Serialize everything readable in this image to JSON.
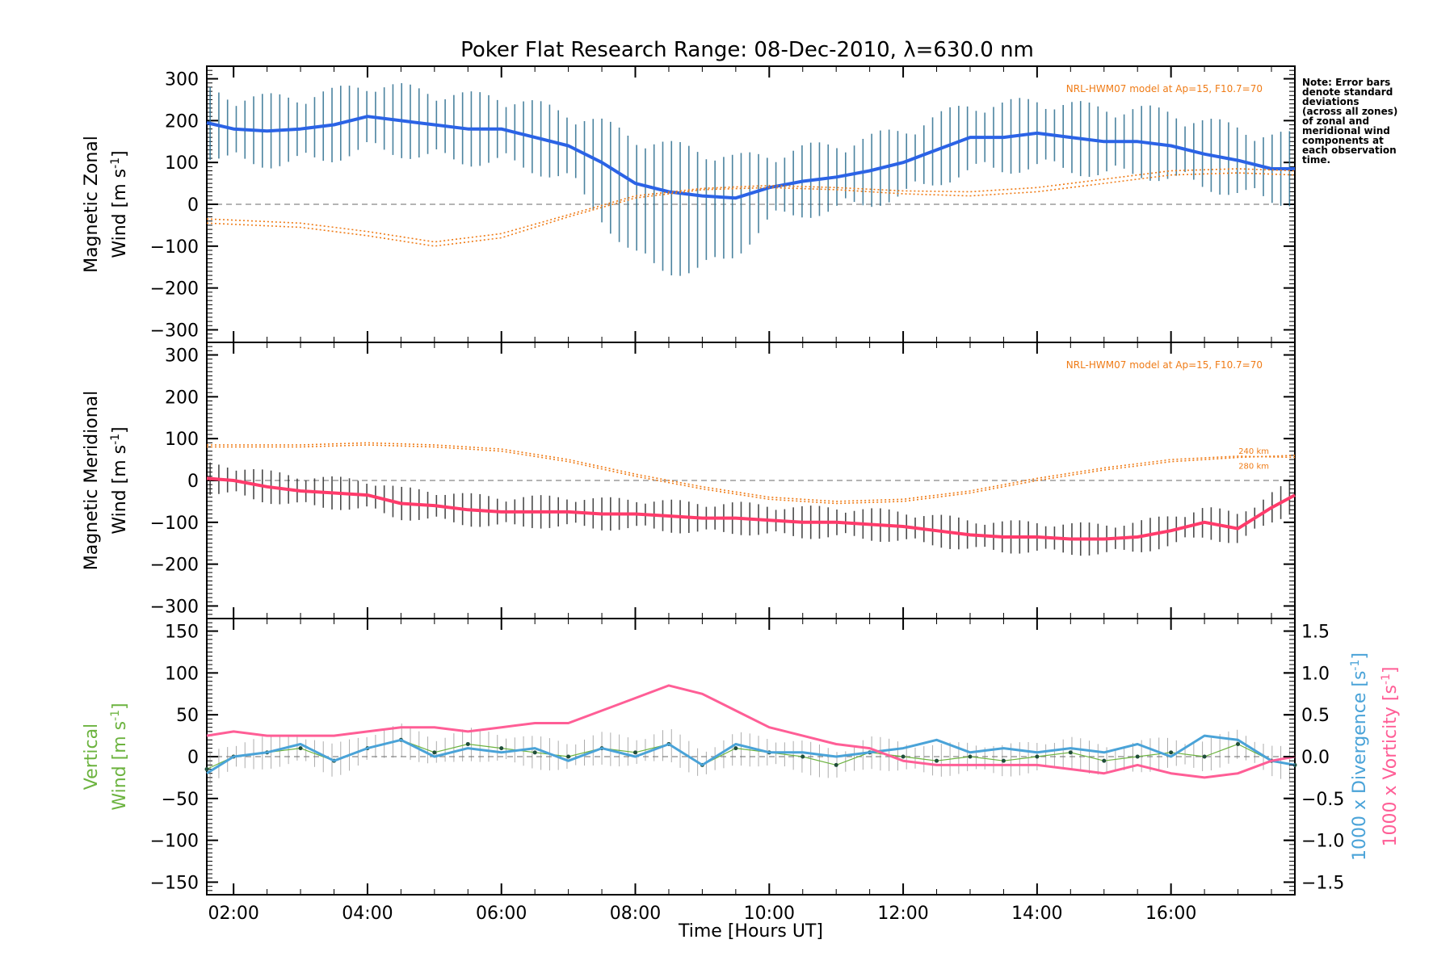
{
  "title": "Poker Flat Research Range: 08-Dec-2010, λ=630.0 nm",
  "note_lines": [
    "Note: Error bars",
    "denote standard",
    "deviations",
    "(across all zones)",
    "of zonal and",
    "meridional wind",
    "components at",
    "each observation",
    "time."
  ],
  "colors": {
    "zonal": "#2b63e6",
    "meridional": "#ff3b6b",
    "vertical_axis": "#6cb33f",
    "divergence": "#4aa3d8",
    "vorticity": "#ff5e96",
    "model": "#ef7b16",
    "errorbar_zonal": "#2c6e8f",
    "errorbar_merid": "#2b2b2b"
  },
  "chart_data": [
    {
      "type": "line",
      "panel": "zonal",
      "ylabel_line1": "Magnetic Zonal",
      "ylabel_line2": "Wind [m s",
      "ylabel_sup": "-1",
      "ylabel_close": "]",
      "ylim": [
        -330,
        330
      ],
      "yticks": [
        300,
        200,
        100,
        0,
        -100,
        -200,
        -300
      ],
      "xlim": [
        1.6,
        17.85
      ],
      "model_label": "NRL-HWM07 model at Ap=15, F10.7=70",
      "series": [
        {
          "name": "zonal wind",
          "x": [
            1.6,
            2.0,
            2.5,
            3.0,
            3.5,
            4.0,
            4.5,
            5.0,
            5.5,
            6.0,
            6.5,
            7.0,
            7.5,
            8.0,
            8.5,
            9.0,
            9.5,
            10.0,
            10.5,
            11.0,
            11.5,
            12.0,
            12.5,
            13.0,
            13.5,
            14.0,
            14.5,
            15.0,
            15.5,
            16.0,
            16.5,
            17.0,
            17.5,
            17.85
          ],
          "values": [
            195,
            180,
            175,
            180,
            190,
            210,
            200,
            190,
            180,
            180,
            160,
            140,
            100,
            50,
            30,
            20,
            15,
            40,
            55,
            65,
            80,
            100,
            130,
            160,
            160,
            170,
            160,
            150,
            150,
            140,
            120,
            105,
            85,
            85
          ],
          "err": 90
        },
        {
          "name": "model 240 km",
          "x": [
            1.6,
            3.0,
            4.0,
            5.0,
            6.0,
            7.0,
            8.0,
            9.0,
            10.0,
            11.0,
            12.0,
            13.0,
            14.0,
            15.0,
            16.0,
            17.0,
            17.85
          ],
          "values": [
            -45,
            -55,
            -75,
            -100,
            -80,
            -30,
            15,
            35,
            40,
            35,
            25,
            20,
            30,
            50,
            70,
            75,
            70
          ]
        },
        {
          "name": "model 280 km",
          "x": [
            1.6,
            3.0,
            4.0,
            5.0,
            6.0,
            7.0,
            8.0,
            9.0,
            10.0,
            11.0,
            12.0,
            13.0,
            14.0,
            15.0,
            16.0,
            17.0,
            17.85
          ],
          "values": [
            -35,
            -45,
            -65,
            -90,
            -70,
            -25,
            20,
            38,
            45,
            40,
            32,
            30,
            40,
            60,
            80,
            85,
            80
          ]
        }
      ]
    },
    {
      "type": "line",
      "panel": "meridional",
      "ylabel_line1": "Magnetic Meridional",
      "ylabel_line2": "Wind [m s",
      "ylabel_sup": "-1",
      "ylabel_close": "]",
      "ylim": [
        -330,
        330
      ],
      "yticks": [
        300,
        200,
        100,
        0,
        -100,
        -200,
        -300
      ],
      "xlim": [
        1.6,
        17.85
      ],
      "model_label": "NRL-HWM07 model at Ap=15, F10.7=70",
      "model_alt_labels": [
        "240 km",
        "280 km"
      ],
      "series": [
        {
          "name": "meridional wind",
          "x": [
            1.6,
            2.0,
            2.5,
            3.0,
            3.5,
            4.0,
            4.5,
            5.0,
            5.5,
            6.0,
            6.5,
            7.0,
            7.5,
            8.0,
            8.5,
            9.0,
            9.5,
            10.0,
            10.5,
            11.0,
            11.5,
            12.0,
            12.5,
            13.0,
            13.5,
            14.0,
            14.5,
            15.0,
            15.5,
            16.0,
            16.5,
            17.0,
            17.5,
            17.85
          ],
          "values": [
            5,
            0,
            -15,
            -25,
            -30,
            -35,
            -55,
            -60,
            -70,
            -75,
            -75,
            -75,
            -80,
            -80,
            -85,
            -90,
            -90,
            -95,
            -100,
            -100,
            -105,
            -110,
            -120,
            -130,
            -135,
            -135,
            -140,
            -140,
            -135,
            -120,
            -100,
            -115,
            -65,
            -35
          ],
          "err": 40
        },
        {
          "name": "model 240 km",
          "x": [
            1.6,
            3.0,
            4.0,
            5.0,
            6.0,
            7.0,
            8.0,
            9.0,
            10.0,
            11.0,
            12.0,
            13.0,
            14.0,
            15.0,
            16.0,
            17.0,
            17.85
          ],
          "values": [
            80,
            80,
            85,
            80,
            70,
            45,
            10,
            -20,
            -45,
            -55,
            -50,
            -30,
            0,
            25,
            45,
            55,
            60
          ]
        },
        {
          "name": "model 280 km",
          "x": [
            1.6,
            3.0,
            4.0,
            5.0,
            6.0,
            7.0,
            8.0,
            9.0,
            10.0,
            11.0,
            12.0,
            13.0,
            14.0,
            15.0,
            16.0,
            17.0,
            17.85
          ],
          "values": [
            85,
            85,
            90,
            85,
            75,
            50,
            15,
            -15,
            -40,
            -50,
            -45,
            -25,
            5,
            30,
            50,
            58,
            55
          ]
        }
      ]
    },
    {
      "type": "line",
      "panel": "vertical",
      "ylabel_line1": "Vertical",
      "ylabel_line2": "Wind [m s",
      "ylabel_sup": "-1",
      "ylabel_close": "]",
      "ylim": [
        -165,
        165
      ],
      "yticks": [
        150,
        100,
        50,
        0,
        -50,
        -100,
        -150
      ],
      "ylim_right": [
        -1.65,
        1.65
      ],
      "yticks_right": [
        1.5,
        1.0,
        0.5,
        0.0,
        -0.5,
        -1.0,
        -1.5
      ],
      "right_label_div": "1000 x Divergence [s",
      "right_label_vort": "1000 x Vorticity [s",
      "right_label_sup": "-1",
      "right_label_close": "]",
      "xlim": [
        1.6,
        17.85
      ],
      "xticks": [
        "02:00",
        "04:00",
        "06:00",
        "08:00",
        "10:00",
        "12:00",
        "14:00",
        "16:00"
      ],
      "xtick_values": [
        2,
        4,
        6,
        8,
        10,
        12,
        14,
        16
      ],
      "xlabel": "Time [Hours UT]",
      "series": [
        {
          "name": "vertical wind",
          "x": [
            1.6,
            2.0,
            2.5,
            3.0,
            3.5,
            4.0,
            4.5,
            5.0,
            5.5,
            6.0,
            6.5,
            7.0,
            7.5,
            8.0,
            8.5,
            9.0,
            9.5,
            10.0,
            10.5,
            11.0,
            11.5,
            12.0,
            12.5,
            13.0,
            13.5,
            14.0,
            14.5,
            15.0,
            15.5,
            16.0,
            16.5,
            17.0,
            17.5,
            17.85
          ],
          "values": [
            -15,
            0,
            5,
            10,
            -5,
            10,
            20,
            5,
            15,
            10,
            5,
            0,
            10,
            5,
            15,
            -10,
            10,
            5,
            0,
            -10,
            5,
            0,
            -5,
            0,
            -5,
            0,
            5,
            -5,
            0,
            5,
            0,
            15,
            -5,
            -10
          ],
          "err": 20
        },
        {
          "name": "1000 x divergence",
          "axis": "right",
          "x": [
            1.6,
            2.0,
            2.5,
            3.0,
            3.5,
            4.0,
            4.5,
            5.0,
            5.5,
            6.0,
            6.5,
            7.0,
            7.5,
            8.0,
            8.5,
            9.0,
            9.5,
            10.0,
            10.5,
            11.0,
            11.5,
            12.0,
            12.5,
            13.0,
            13.5,
            14.0,
            14.5,
            15.0,
            15.5,
            16.0,
            16.5,
            17.0,
            17.5,
            17.85
          ],
          "values": [
            -0.2,
            0.0,
            0.05,
            0.15,
            -0.05,
            0.1,
            0.2,
            0.0,
            0.1,
            0.05,
            0.1,
            -0.05,
            0.1,
            0.0,
            0.15,
            -0.1,
            0.15,
            0.05,
            0.05,
            0.0,
            0.05,
            0.1,
            0.2,
            0.05,
            0.1,
            0.05,
            0.1,
            0.05,
            0.15,
            0.0,
            0.25,
            0.2,
            -0.05,
            -0.1
          ]
        },
        {
          "name": "1000 x vorticity",
          "axis": "right",
          "x": [
            1.6,
            2.0,
            2.5,
            3.0,
            3.5,
            4.0,
            4.5,
            5.0,
            5.5,
            6.0,
            6.5,
            7.0,
            7.5,
            8.0,
            8.5,
            9.0,
            9.5,
            10.0,
            10.5,
            11.0,
            11.5,
            12.0,
            12.5,
            13.0,
            13.5,
            14.0,
            14.5,
            15.0,
            15.5,
            16.0,
            16.5,
            17.0,
            17.5,
            17.85
          ],
          "values": [
            0.25,
            0.3,
            0.25,
            0.25,
            0.25,
            0.3,
            0.35,
            0.35,
            0.3,
            0.35,
            0.4,
            0.4,
            0.55,
            0.7,
            0.85,
            0.75,
            0.55,
            0.35,
            0.25,
            0.15,
            0.1,
            -0.05,
            -0.1,
            -0.1,
            -0.1,
            -0.1,
            -0.15,
            -0.2,
            -0.1,
            -0.2,
            -0.25,
            -0.2,
            -0.05,
            0.0
          ]
        }
      ]
    }
  ]
}
